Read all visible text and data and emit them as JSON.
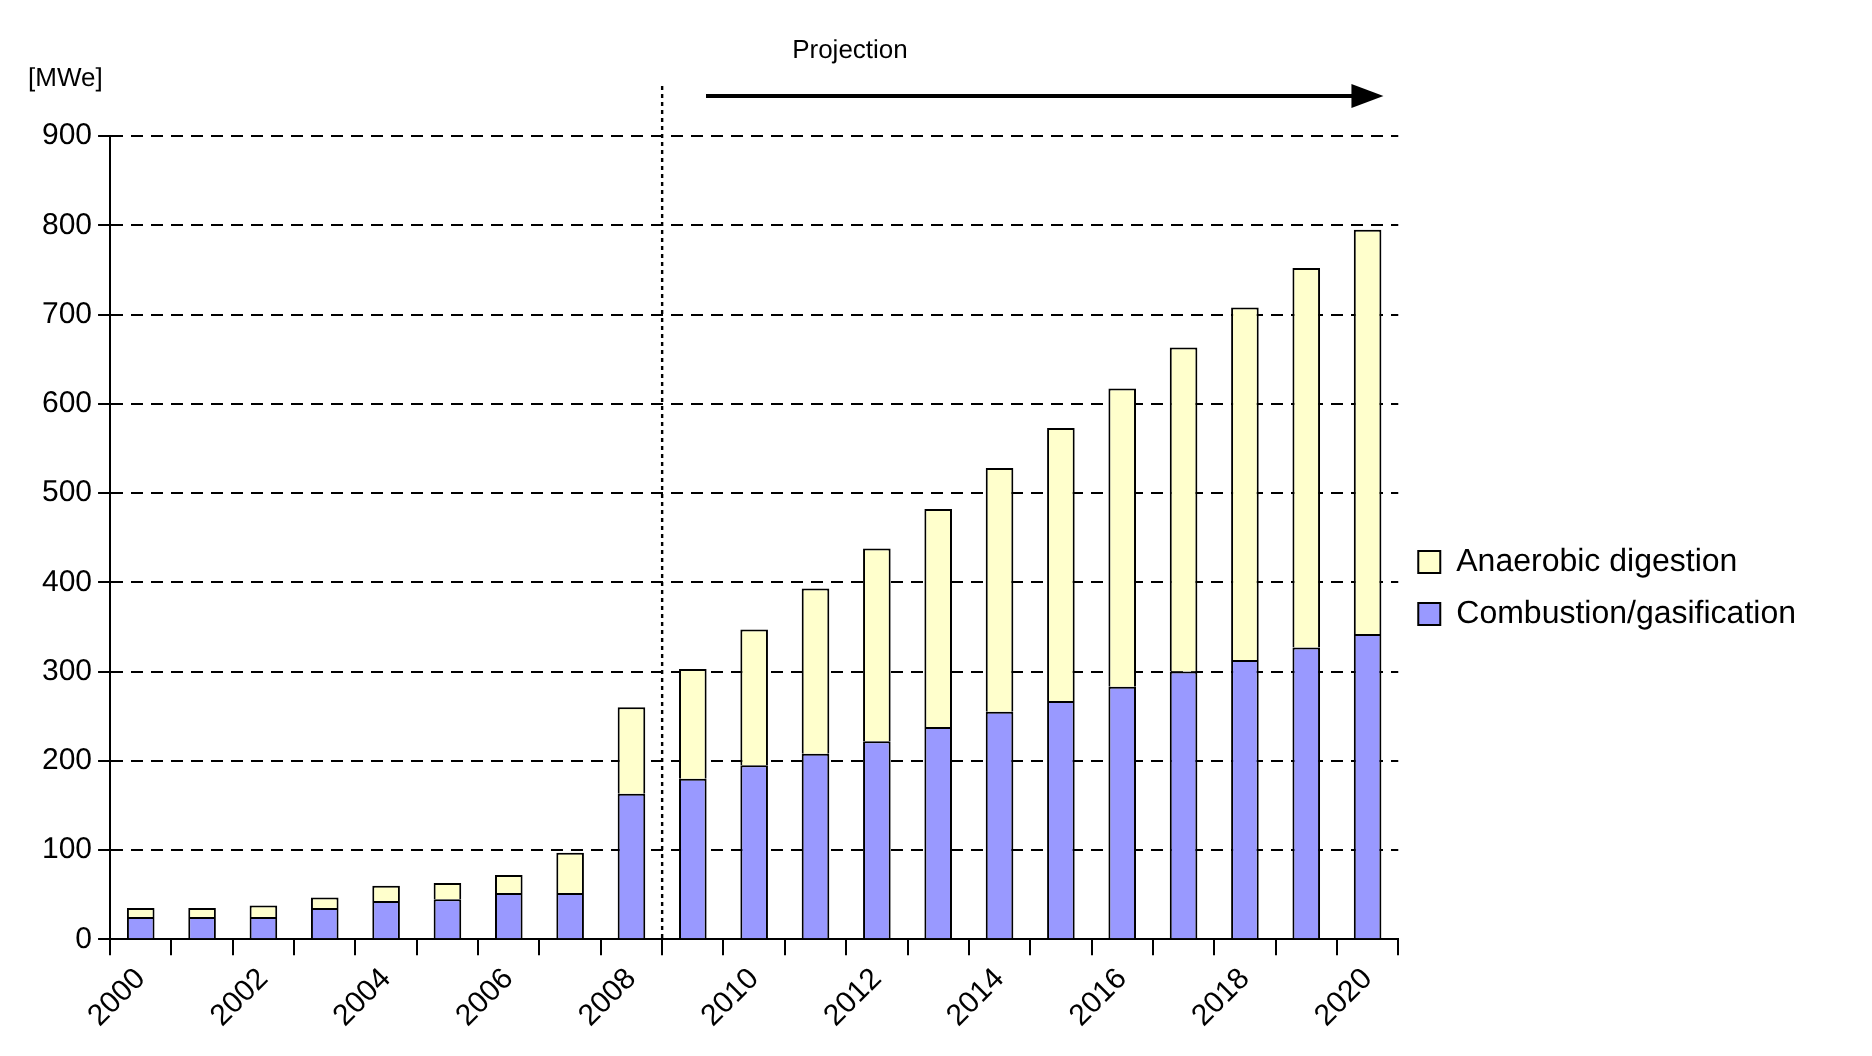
{
  "chart_data": {
    "type": "bar",
    "stacked": true,
    "ylabel": "[MWe]",
    "categories": [
      "2000",
      null,
      "2002",
      null,
      "2004",
      null,
      "2006",
      null,
      "2008",
      null,
      "2010",
      null,
      "2012",
      null,
      "2014",
      null,
      "2016",
      null,
      "2018",
      null,
      "2020"
    ],
    "series": [
      {
        "name": "Combustion/gasification",
        "color": "#9999ff",
        "values": [
          25,
          25,
          25,
          35,
          43,
          45,
          52,
          52,
          163,
          180,
          195,
          208,
          222,
          238,
          255,
          267,
          283,
          300,
          313,
          327,
          342
        ]
      },
      {
        "name": "Anaerobic digestion",
        "color": "#ffffcc",
        "values": [
          10,
          10,
          13,
          12,
          17,
          18,
          20,
          45,
          97,
          123,
          152,
          185,
          216,
          244,
          273,
          306,
          334,
          363,
          395,
          425,
          453
        ]
      }
    ],
    "ylim": [
      0,
      900
    ],
    "yticks": [
      0,
      100,
      200,
      300,
      400,
      500,
      600,
      700,
      800,
      900
    ],
    "grid": "y",
    "legend": "right",
    "ref_lines": [
      {
        "axis": "x",
        "value": "2008",
        "line_style": "dotted",
        "color": "#000000"
      }
    ],
    "annotations": [
      "Projection"
    ]
  }
}
